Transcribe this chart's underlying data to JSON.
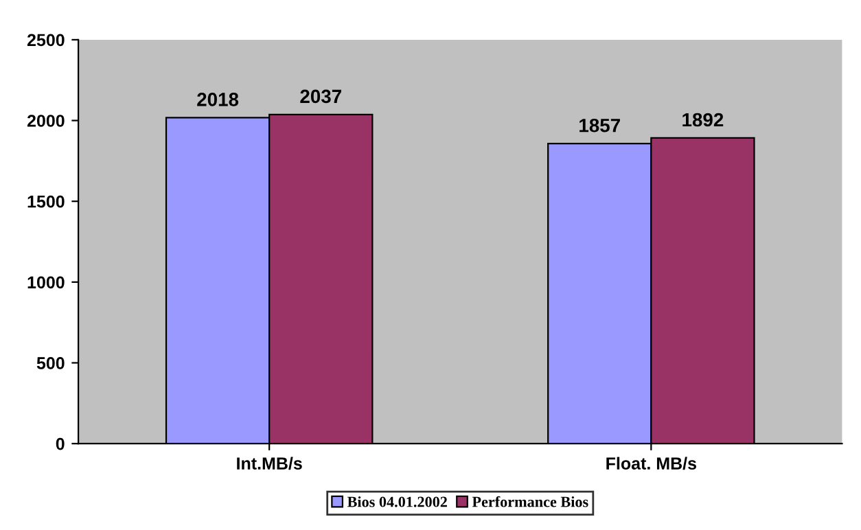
{
  "chart_data": {
    "type": "bar",
    "categories": [
      "Int.MB/s",
      "Float. MB/s"
    ],
    "series": [
      {
        "name": "Bios 04.01.2002",
        "color": "#9999ff",
        "values": [
          2018,
          1857
        ]
      },
      {
        "name": "Performance Bios",
        "color": "#993366",
        "values": [
          2037,
          1892
        ]
      }
    ],
    "ylim": [
      0,
      2500
    ],
    "yticks": [
      0,
      500,
      1000,
      1500,
      2000,
      2500
    ],
    "grid": false,
    "legend": "bottom",
    "data_labels": true
  }
}
